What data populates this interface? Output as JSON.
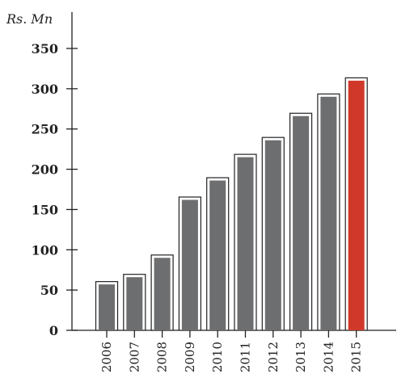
{
  "chart_data": {
    "type": "bar",
    "title": "",
    "xlabel": "",
    "ylabel": "",
    "unit_label": "Rs. Mn",
    "categories": [
      "2006",
      "2007",
      "2008",
      "2009",
      "2010",
      "2011",
      "2012",
      "2013",
      "2014",
      "2015"
    ],
    "values": [
      57,
      66,
      90,
      162,
      186,
      215,
      236,
      266,
      290,
      310
    ],
    "ylim": [
      0,
      350
    ],
    "yticks": [
      0,
      50,
      100,
      150,
      200,
      250,
      300,
      350
    ],
    "grid": false,
    "legend": "none",
    "colors": {
      "bar": "#6d6e70",
      "highlight": "#d0392a",
      "highlight_category": "2015",
      "outline": "#222222"
    }
  }
}
